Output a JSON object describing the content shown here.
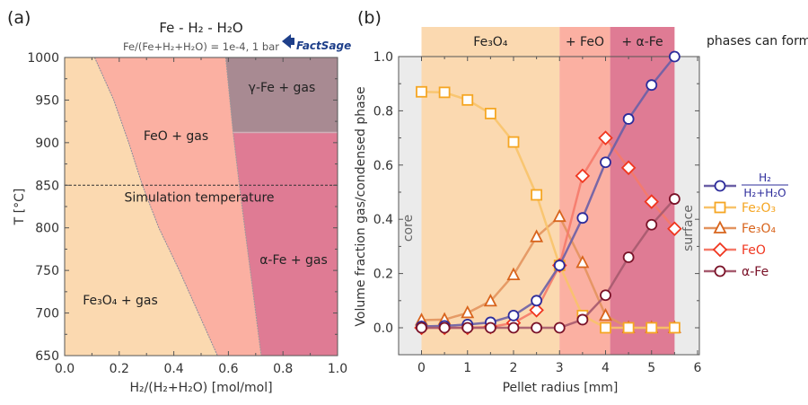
{
  "chart_data": [
    {
      "panel": "(a)",
      "type": "area",
      "title": "Fe - H₂ - H₂O",
      "subtitle": "Fe/(Fe+H₂+H₂O) = 1e-4, 1 bar",
      "logo": "FactSage",
      "xlabel": "H₂/(H₂+H₂O) [mol/mol]",
      "ylabel": "T [°C]",
      "xlim": [
        0.0,
        1.0
      ],
      "ylim": [
        650,
        1000
      ],
      "xticks": [
        "0.0",
        "0.2",
        "0.4",
        "0.6",
        "0.8",
        "1.0"
      ],
      "yticks": [
        "650",
        "700",
        "750",
        "800",
        "850",
        "900",
        "950",
        "1000"
      ],
      "boundaries": {
        "Fe3O4_FeO": [
          [
            0.11,
            1000
          ],
          [
            0.18,
            950
          ],
          [
            0.235,
            900
          ],
          [
            0.285,
            850
          ],
          [
            0.345,
            800
          ],
          [
            0.42,
            750
          ],
          [
            0.49,
            700
          ],
          [
            0.56,
            650
          ]
        ],
        "FeO_Fe": [
          [
            0.59,
            1000
          ],
          [
            0.617,
            912
          ],
          [
            0.64,
            850
          ],
          [
            0.66,
            800
          ],
          [
            0.68,
            750
          ],
          [
            0.7,
            700
          ],
          [
            0.72,
            650
          ]
        ],
        "gamma_alpha_T": 912
      },
      "regions": [
        {
          "label": "Fe₃O₄ + gas",
          "color": "#fbd9b0"
        },
        {
          "label": "FeO + gas",
          "color": "#fbb0a2"
        },
        {
          "label": "γ-Fe + gas",
          "color": "#a88a92"
        },
        {
          "label": "α-Fe + gas",
          "color": "#df7b94"
        }
      ],
      "annotation": {
        "label": "Simulation temperature",
        "T": 850
      }
    },
    {
      "panel": "(b)",
      "type": "line",
      "xlabel": "Pellet radius [mm]",
      "ylabel": "Volume fraction gas/condensed phase",
      "xlim": [
        -0.5,
        6.0
      ],
      "ylim": [
        -0.18,
        1.0
      ],
      "xticks": [
        "0",
        "1",
        "2",
        "3",
        "4",
        "5",
        "6"
      ],
      "yticks": [
        "0.0",
        "0.2",
        "0.4",
        "0.6",
        "0.8",
        "1.0"
      ],
      "side_labels": {
        "core": "core",
        "surface": "surface"
      },
      "phase_bands": [
        {
          "label": "Fe₃O₄",
          "from": 0,
          "to": 3.0,
          "color": "#fbd9b0"
        },
        {
          "label": "+ FeO",
          "from": 3.0,
          "to": 4.1,
          "color": "#fbb0a2"
        },
        {
          "label": "+ α-Fe",
          "from": 4.1,
          "to": 5.5,
          "color": "#df7b94"
        }
      ],
      "phase_note": "phases can form",
      "x": [
        0,
        0.5,
        1,
        1.5,
        2,
        2.5,
        3,
        3.5,
        4,
        4.5,
        5,
        5.5
      ],
      "series": [
        {
          "name": "H2/(H2+H2O)",
          "label_num": "H₂",
          "label_den": "H₂+H₂O",
          "color": "#2d2c9b",
          "line": "#6a5fa6",
          "marker": "circle",
          "values": [
            0.005,
            0.007,
            0.012,
            0.02,
            0.045,
            0.1,
            0.23,
            0.405,
            0.61,
            0.77,
            0.895,
            1.0
          ]
        },
        {
          "name": "Fe₂O₃",
          "color": "#f5a623",
          "line": "#f8c36a",
          "marker": "square",
          "values": [
            0.87,
            0.868,
            0.84,
            0.79,
            0.685,
            0.49,
            0.23,
            0.045,
            0.0,
            0.0,
            0.0,
            0.0
          ]
        },
        {
          "name": "Fe₃O₄",
          "color": "#d8641c",
          "line": "#e3935e",
          "marker": "triangle",
          "values": [
            0.028,
            0.03,
            0.055,
            0.098,
            0.195,
            0.335,
            0.41,
            0.24,
            0.045,
            0.0,
            0.0,
            0.0
          ]
        },
        {
          "name": "FeO",
          "color": "#f0361f",
          "line": "#f57a6a",
          "marker": "diamond",
          "values": [
            0.0,
            0.0,
            0.0,
            0.003,
            0.018,
            0.065,
            0.23,
            0.56,
            0.7,
            0.59,
            0.465,
            0.365
          ]
        },
        {
          "name": "α-Fe",
          "color": "#7a1228",
          "line": "#a65a6e",
          "marker": "circle",
          "values": [
            0.0,
            0.0,
            0.0,
            0.0,
            0.0,
            0.0,
            0.0,
            0.03,
            0.12,
            0.26,
            0.38,
            0.475
          ]
        }
      ]
    }
  ]
}
